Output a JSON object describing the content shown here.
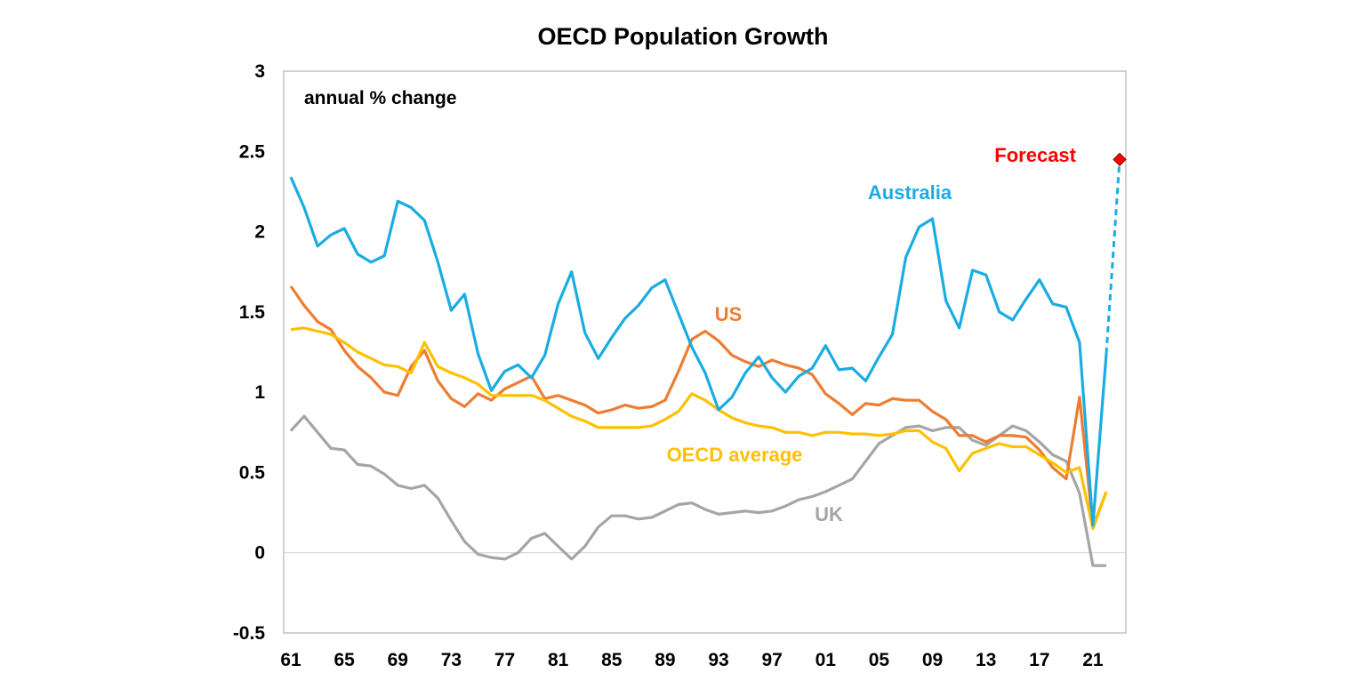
{
  "chart_data": {
    "type": "line",
    "title": "OECD Population Growth",
    "annotation": "annual % change",
    "xlabel": "",
    "ylabel": "",
    "ylim": [
      -0.5,
      3
    ],
    "yticks": [
      -0.5,
      0,
      0.5,
      1,
      1.5,
      2,
      2.5,
      3
    ],
    "ytick_labels": [
      "-0.5",
      "0",
      "0.5",
      "1",
      "1.5",
      "2",
      "2.5",
      "3"
    ],
    "xlim": [
      1961,
      2023
    ],
    "xticks": [
      1961,
      1965,
      1969,
      1973,
      1977,
      1981,
      1985,
      1989,
      1993,
      1997,
      2001,
      2005,
      2009,
      2013,
      2017,
      2021
    ],
    "xtick_labels": [
      "61",
      "65",
      "69",
      "73",
      "77",
      "81",
      "85",
      "89",
      "93",
      "97",
      "01",
      "05",
      "09",
      "13",
      "17",
      "21"
    ],
    "x_start": 1961,
    "series": [
      {
        "name": "Australia",
        "label": "Australia",
        "color": "#1AACE3",
        "values": [
          2.34,
          2.15,
          1.91,
          1.98,
          2.02,
          1.86,
          1.81,
          1.85,
          2.19,
          2.15,
          2.07,
          1.81,
          1.51,
          1.61,
          1.24,
          1.01,
          1.13,
          1.17,
          1.09,
          1.23,
          1.55,
          1.75,
          1.37,
          1.21,
          1.34,
          1.46,
          1.54,
          1.65,
          1.7,
          1.49,
          1.28,
          1.12,
          0.89,
          0.97,
          1.12,
          1.22,
          1.09,
          1.0,
          1.1,
          1.15,
          1.29,
          1.14,
          1.15,
          1.07,
          1.22,
          1.36,
          1.84,
          2.03,
          2.08,
          1.57,
          1.4,
          1.76,
          1.73,
          1.5,
          1.45,
          1.58,
          1.7,
          1.55,
          1.53,
          1.31,
          0.17,
          1.24
        ]
      },
      {
        "name": "US",
        "label": "US",
        "color": "#ED7D31",
        "values": [
          1.66,
          1.54,
          1.44,
          1.39,
          1.26,
          1.16,
          1.09,
          1.0,
          0.98,
          1.16,
          1.26,
          1.07,
          0.96,
          0.91,
          0.99,
          0.95,
          1.02,
          1.06,
          1.1,
          0.96,
          0.98,
          0.95,
          0.92,
          0.87,
          0.89,
          0.92,
          0.9,
          0.91,
          0.95,
          1.13,
          1.33,
          1.38,
          1.32,
          1.23,
          1.19,
          1.16,
          1.2,
          1.17,
          1.15,
          1.11,
          0.99,
          0.93,
          0.86,
          0.93,
          0.92,
          0.96,
          0.95,
          0.95,
          0.88,
          0.83,
          0.73,
          0.73,
          0.69,
          0.73,
          0.73,
          0.72,
          0.64,
          0.53,
          0.46,
          0.97,
          0.16,
          0.38
        ]
      },
      {
        "name": "OECD average",
        "label": "OECD average",
        "color": "#FFC000",
        "values": [
          1.39,
          1.4,
          1.38,
          1.36,
          1.31,
          1.25,
          1.21,
          1.17,
          1.16,
          1.12,
          1.31,
          1.16,
          1.12,
          1.09,
          1.05,
          0.98,
          0.98,
          0.98,
          0.98,
          0.95,
          0.9,
          0.85,
          0.82,
          0.78,
          0.78,
          0.78,
          0.78,
          0.79,
          0.83,
          0.88,
          0.99,
          0.95,
          0.89,
          0.84,
          0.81,
          0.79,
          0.78,
          0.75,
          0.75,
          0.73,
          0.75,
          0.75,
          0.74,
          0.74,
          0.73,
          0.74,
          0.76,
          0.76,
          0.69,
          0.65,
          0.51,
          0.62,
          0.65,
          0.68,
          0.66,
          0.66,
          0.61,
          0.56,
          0.5,
          0.53,
          0.15,
          0.38
        ]
      },
      {
        "name": "UK",
        "label": "UK",
        "color": "#A5A5A5",
        "values": [
          0.76,
          0.85,
          0.75,
          0.65,
          0.64,
          0.55,
          0.54,
          0.49,
          0.42,
          0.4,
          0.42,
          0.34,
          0.2,
          0.07,
          -0.01,
          -0.03,
          -0.04,
          0.0,
          0.09,
          0.12,
          0.04,
          -0.04,
          0.04,
          0.16,
          0.23,
          0.23,
          0.21,
          0.22,
          0.26,
          0.3,
          0.31,
          0.27,
          0.24,
          0.25,
          0.26,
          0.25,
          0.26,
          0.29,
          0.33,
          0.35,
          0.38,
          0.42,
          0.46,
          0.57,
          0.68,
          0.73,
          0.78,
          0.79,
          0.76,
          0.78,
          0.78,
          0.7,
          0.67,
          0.73,
          0.79,
          0.76,
          0.69,
          0.61,
          0.57,
          0.37,
          -0.08,
          -0.08
        ]
      }
    ],
    "forecast": {
      "label": "Forecast",
      "color": "#FF0000",
      "line_color": "#1AACE3",
      "from": [
        2022,
        1.24
      ],
      "to": [
        2023,
        2.45
      ]
    }
  }
}
